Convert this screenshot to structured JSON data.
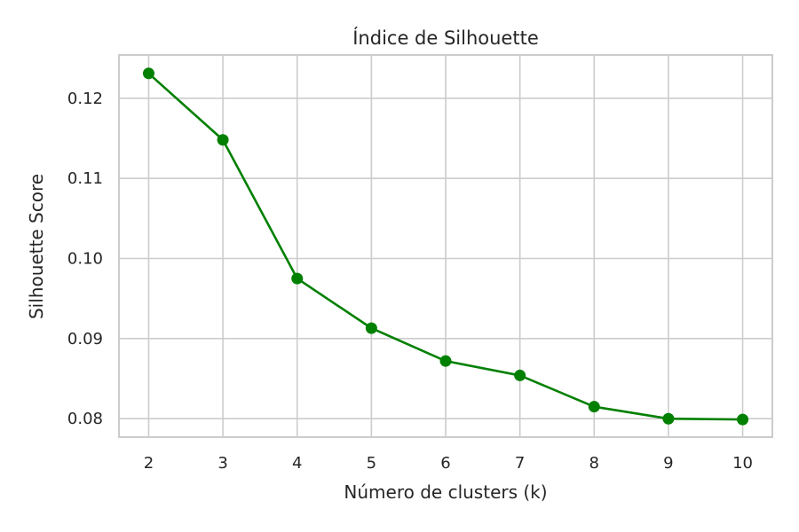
{
  "chart_data": {
    "type": "line",
    "title": "Índice de Silhouette",
    "xlabel": "Número de clusters (k)",
    "ylabel": "Silhouette Score",
    "x": [
      2,
      3,
      4,
      5,
      6,
      7,
      8,
      9,
      10
    ],
    "series": [
      {
        "values": [
          0.1231,
          0.1148,
          0.0975,
          0.0913,
          0.0872,
          0.0854,
          0.0815,
          0.08,
          0.0799
        ],
        "color": "#008000",
        "marker": "circle"
      }
    ],
    "xticks": [
      "2",
      "3",
      "4",
      "5",
      "6",
      "7",
      "8",
      "9",
      "10"
    ],
    "yticks": [
      "0.08",
      "0.09",
      "0.10",
      "0.11",
      "0.12"
    ],
    "ytick_values": [
      0.08,
      0.09,
      0.1,
      0.11,
      0.12
    ],
    "xlim": [
      1.6,
      10.4
    ],
    "ylim": [
      0.0777,
      0.1254
    ],
    "grid": true,
    "gridColor": "#cccccc",
    "spineColor": "#cccccc"
  }
}
